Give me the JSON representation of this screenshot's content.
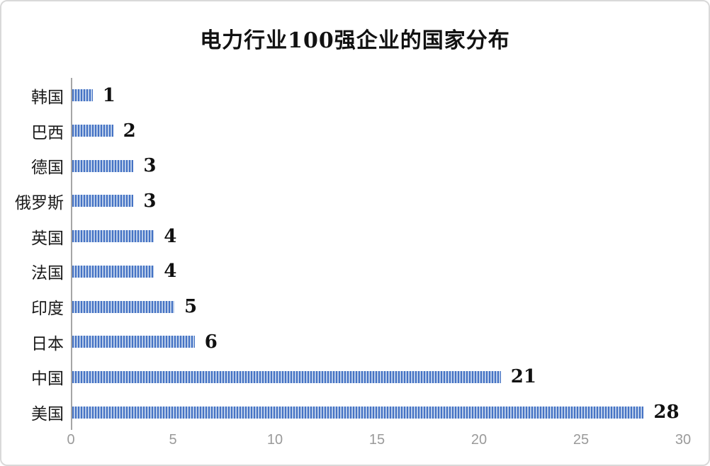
{
  "title": "电力行业100强企业的国家分布",
  "chart_data": {
    "type": "bar",
    "orientation": "horizontal",
    "title": "电力行业100强企业的国家分布",
    "categories": [
      "韩国",
      "巴西",
      "德国",
      "俄罗斯",
      "英国",
      "法国",
      "印度",
      "日本",
      "中国",
      "美国"
    ],
    "values": [
      1,
      2,
      3,
      3,
      4,
      4,
      5,
      6,
      21,
      28
    ],
    "xlabel": "",
    "ylabel": "",
    "xlim": [
      0,
      30
    ],
    "x_ticks": [
      0,
      5,
      10,
      15,
      20,
      25,
      30
    ],
    "grid": false,
    "legend": false,
    "data_labels": true,
    "colors": {
      "bar_stripe_dark": "#4472c4",
      "bar_stripe_light": "#b9cce9",
      "axis_line": "#a6a6a6",
      "tick_label": "#9a9a9a",
      "text": "#111111",
      "frame_border": "#d9d9d9",
      "background": "#ffffff"
    }
  }
}
